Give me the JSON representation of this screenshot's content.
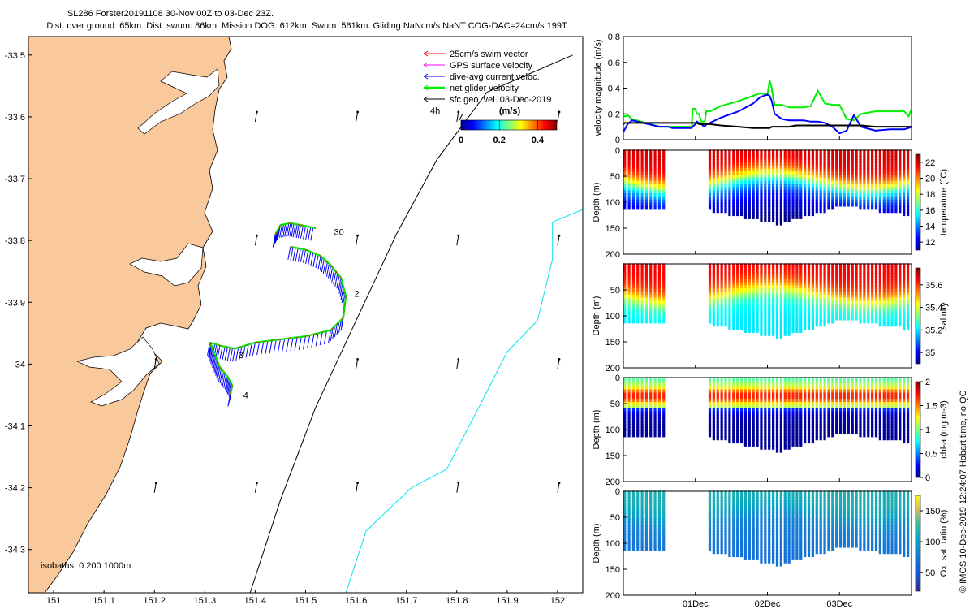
{
  "header": {
    "title": "SL286 Forster20191108 30-Nov 00Z to 03-Dec 23Z.",
    "subtitle": "Dist. over ground: 65km. Dist. swum: 86km. Mission DOG: 612km. Swum: 561km. Gliding NaNcm/s NaNT COG-DAC=24cm/s 199T"
  },
  "footer_text": "© IMOS 10-Dec-2019 12:24:07 Hobart time, no QC",
  "colors": {
    "land": "#f9c89b",
    "swim": "#ff0000",
    "gps": "#ff00ff",
    "dac": "#0000ff",
    "net": "#00ee00",
    "geo": "#000000",
    "isobath200": "#000000",
    "isobath1000": "#00e5ee"
  },
  "chart_data": [
    {
      "id": "map",
      "type": "scatter",
      "description_type": "map",
      "xlim": [
        150.95,
        152.05
      ],
      "ylim": [
        -34.37,
        -33.47
      ],
      "x_ticks": [
        151,
        151.1,
        151.2,
        151.3,
        151.4,
        151.5,
        151.6,
        151.7,
        151.8,
        151.9,
        152
      ],
      "x_tick_labels": [
        "151",
        "151.1",
        "151.2",
        "151.3",
        "151.4",
        "151.5",
        "151.6",
        "151.7",
        "151.8",
        "151.9",
        "152"
      ],
      "y_ticks": [
        -33.5,
        -33.6,
        -33.7,
        -33.8,
        -33.9,
        -34,
        -34.1,
        -34.2,
        -34.3
      ],
      "y_tick_labels": [
        "-33.5",
        "-33.6",
        "-33.7",
        "-33.8",
        "-33.9",
        "-34",
        "-34.1",
        "-34.2",
        "-34.3"
      ],
      "legend": [
        {
          "label": "25cm/s swim vector",
          "color_key": "swim"
        },
        {
          "label": "GPS surface velocity",
          "color_key": "gps"
        },
        {
          "label": "dive-avg current veloc.",
          "color_key": "dac"
        },
        {
          "label": "net glider velocity",
          "color_key": "net"
        },
        {
          "label": "sfc geo. vel. 03-Dec-2019",
          "color_key": "geo"
        }
      ],
      "colorbar": {
        "label": "(m/s)",
        "ticks": [
          0,
          0.2,
          0.4
        ],
        "range": [
          0,
          0.5
        ]
      },
      "scale_label": "4h",
      "isobath_label": "isobaths: 0   200   1000m",
      "track_labels": [
        {
          "text": "30",
          "x": 151.55,
          "y": -33.786
        },
        {
          "text": "2",
          "x": 151.59,
          "y": -33.886
        },
        {
          "text": "3",
          "x": 151.36,
          "y": -33.985
        },
        {
          "text": "4",
          "x": 151.37,
          "y": -34.05
        }
      ],
      "track": [
        [
          151.44,
          -33.79
        ],
        [
          151.45,
          -33.775
        ],
        [
          151.47,
          -33.772
        ],
        [
          151.49,
          -33.775
        ],
        [
          151.52,
          -33.78
        ],
        [
          151.47,
          -33.81
        ],
        [
          151.5,
          -33.815
        ],
        [
          151.53,
          -33.825
        ],
        [
          151.55,
          -33.84
        ],
        [
          151.57,
          -33.86
        ],
        [
          151.58,
          -33.89
        ],
        [
          151.575,
          -33.925
        ],
        [
          151.55,
          -33.945
        ],
        [
          151.5,
          -33.955
        ],
        [
          151.45,
          -33.96
        ],
        [
          151.4,
          -33.965
        ],
        [
          151.36,
          -33.975
        ],
        [
          151.33,
          -33.97
        ],
        [
          151.31,
          -33.965
        ],
        [
          151.32,
          -33.985
        ],
        [
          151.33,
          -34.005
        ],
        [
          151.345,
          -34.02
        ],
        [
          151.355,
          -34.035
        ],
        [
          151.35,
          -34.05
        ]
      ],
      "geo_vectors": [
        [
          151.4,
          -33.6
        ],
        [
          151.6,
          -33.6
        ],
        [
          151.8,
          -33.6
        ],
        [
          152,
          -33.6
        ],
        [
          151.4,
          -33.8
        ],
        [
          151.6,
          -33.8
        ],
        [
          151.8,
          -33.8
        ],
        [
          152,
          -33.8
        ],
        [
          151.2,
          -34
        ],
        [
          151.6,
          -34
        ],
        [
          151.8,
          -34
        ],
        [
          152,
          -34
        ],
        [
          151.2,
          -34.2
        ],
        [
          151.4,
          -34.2
        ],
        [
          151.6,
          -34.2
        ],
        [
          151.8,
          -34.2
        ],
        [
          152,
          -34.2
        ]
      ]
    },
    {
      "id": "velocity",
      "type": "line",
      "ylabel": "velocity magnitude (m/s)",
      "ylim": [
        0,
        0.8
      ],
      "y_ticks": [
        0,
        0.2,
        0.4,
        0.6,
        0.8
      ],
      "x": [
        0,
        0.02,
        0.06,
        0.12,
        0.5,
        0.55,
        0.56,
        0.6,
        0.62,
        0.68,
        0.72,
        0.78,
        0.8,
        0.82,
        0.85,
        0.88,
        0.92,
        0.95,
        0.96,
        1,
        1.02,
        1.05,
        1.08,
        1.13,
        1.15,
        1.2,
        1.35,
        1.6,
        1.8,
        1.9,
        2,
        2.03,
        2.06,
        2.08,
        2.1,
        2.2,
        2.3,
        2.4,
        2.5,
        2.6,
        2.7,
        2.8,
        2.9,
        3,
        3.1,
        3.2,
        3.3,
        3.5,
        3.7,
        3.9,
        3.96,
        4
      ],
      "series": [
        {
          "color_key": "net",
          "values": [
            0.19,
            0.18,
            0.19,
            0.16,
            0.1,
            0.1,
            0.1,
            0.1,
            0.1,
            0.1,
            0.1,
            0.1,
            0.1,
            0.1,
            0.1,
            0.1,
            0.1,
            0.1,
            0.24,
            0.24,
            0.2,
            0.2,
            0.14,
            0.14,
            0.22,
            0.22,
            0.26,
            0.3,
            0.34,
            0.36,
            0.35,
            0.46,
            0.4,
            0.32,
            0.27,
            0.27,
            0.25,
            0.25,
            0.25,
            0.26,
            0.38,
            0.28,
            0.27,
            0.27,
            0.16,
            0.15,
            0.2,
            0.22,
            0.22,
            0.22,
            0.18,
            0.24
          ]
        },
        {
          "color_key": "dac",
          "values": [
            0.06,
            0.08,
            0.12,
            0.15,
            0.1,
            0.1,
            0.1,
            0.1,
            0.1,
            0.09,
            0.09,
            0.09,
            0.09,
            0.09,
            0.09,
            0.09,
            0.09,
            0.09,
            0.1,
            0.12,
            0.14,
            0.13,
            0.12,
            0.1,
            0.12,
            0.13,
            0.17,
            0.22,
            0.28,
            0.33,
            0.35,
            0.34,
            0.3,
            0.25,
            0.2,
            0.16,
            0.15,
            0.15,
            0.15,
            0.14,
            0.14,
            0.13,
            0.1,
            0.05,
            0.07,
            0.19,
            0.1,
            0.07,
            0.08,
            0.08,
            0.09,
            0.1
          ]
        },
        {
          "color_key": "geo",
          "values": [
            0.12,
            0.13,
            0.13,
            0.13,
            0.13,
            0.13,
            0.13,
            0.13,
            0.13,
            0.13,
            0.13,
            0.13,
            0.13,
            0.13,
            0.13,
            0.13,
            0.13,
            0.13,
            0.13,
            0.13,
            0.13,
            0.12,
            0.12,
            0.12,
            0.12,
            0.12,
            0.11,
            0.1,
            0.09,
            0.09,
            0.09,
            0.09,
            0.1,
            0.1,
            0.1,
            0.1,
            0.1,
            0.11,
            0.11,
            0.11,
            0.11,
            0.11,
            0.11,
            0.11,
            0.11,
            0.11,
            0.11,
            0.1,
            0.1,
            0.1,
            0.1,
            0.1
          ]
        }
      ]
    },
    {
      "id": "temperature",
      "type": "heatmap",
      "ylabel": "Depth (m)",
      "colorbar_label": "temperature (°C)",
      "ylim": [
        0,
        200
      ],
      "y_ticks": [
        0,
        50,
        100,
        150,
        200
      ],
      "clim": [
        11,
        23
      ],
      "colorbar_ticks": [
        12,
        14,
        16,
        18,
        20,
        22
      ],
      "surface_value": 22,
      "deep_value": 13.5,
      "thermocline_depth": 60
    },
    {
      "id": "salinity",
      "type": "heatmap",
      "ylabel": "Depth (m)",
      "colorbar_label": "salinity",
      "ylim": [
        0,
        200
      ],
      "y_ticks": [
        50,
        100,
        150,
        200
      ],
      "clim": [
        34.9,
        35.75
      ],
      "colorbar_ticks": [
        35,
        35.2,
        35.4,
        35.6
      ],
      "surface_value": 35.65,
      "deep_value": 35.2,
      "thermocline_depth": 60
    },
    {
      "id": "chla",
      "type": "heatmap",
      "ylabel": "Depth (m)",
      "colorbar_label": "chl-a (mg m-3)",
      "ylim": [
        0,
        200
      ],
      "y_ticks": [
        0,
        50,
        100,
        150,
        200
      ],
      "clim": [
        0,
        2
      ],
      "colorbar_ticks": [
        0,
        0.5,
        1,
        1.5,
        2
      ],
      "surface_value": 0.9,
      "max_value": 1.7,
      "max_depth": 35,
      "deep_value": 0.05
    },
    {
      "id": "oxygen",
      "type": "heatmap",
      "ylabel": "Depth (m)",
      "colorbar_label": "Ox. sat. ratio (%)",
      "ylim": [
        0,
        200
      ],
      "y_ticks": [
        0,
        50,
        100,
        150,
        200
      ],
      "clim": [
        20,
        175
      ],
      "colorbar_ticks": [
        50,
        100,
        150
      ],
      "surface_value": 110,
      "deep_value": 70,
      "thermocline_depth": 45,
      "x_ticks": [
        1,
        2,
        3
      ],
      "x_tick_labels": [
        "01Dec",
        "02Dec",
        "03Dec"
      ]
    }
  ]
}
